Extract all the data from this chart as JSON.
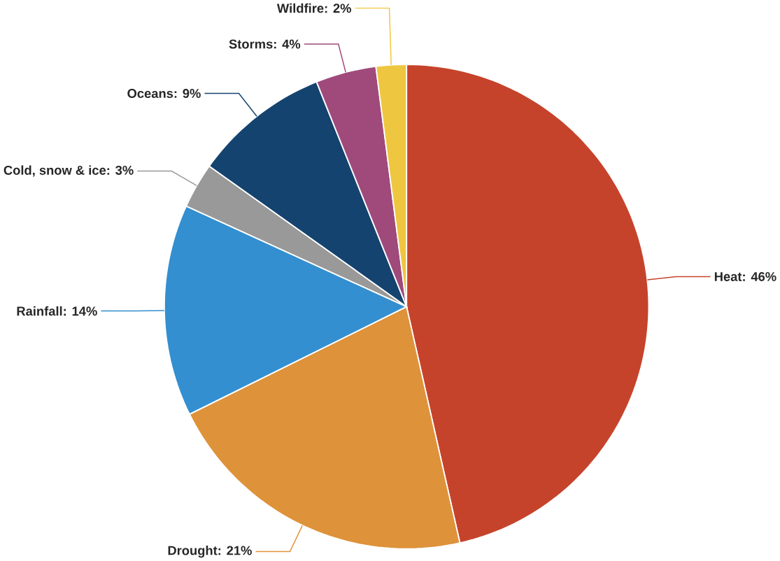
{
  "chart_data": {
    "type": "pie",
    "categories": [
      "Heat",
      "Drought",
      "Rainfall",
      "Cold, snow & ice",
      "Oceans",
      "Storms",
      "Wildfire"
    ],
    "values": [
      46,
      21,
      14,
      3,
      9,
      4,
      2
    ],
    "colors": [
      "#c6432b",
      "#de923a",
      "#338fd0",
      "#999999",
      "#15436f",
      "#9f4a7b",
      "#efc640"
    ],
    "value_labels": [
      ": 46%",
      ": 21%",
      ": 14%",
      ": 3%",
      ": 9%",
      ": 4%",
      ": 2%"
    ]
  }
}
